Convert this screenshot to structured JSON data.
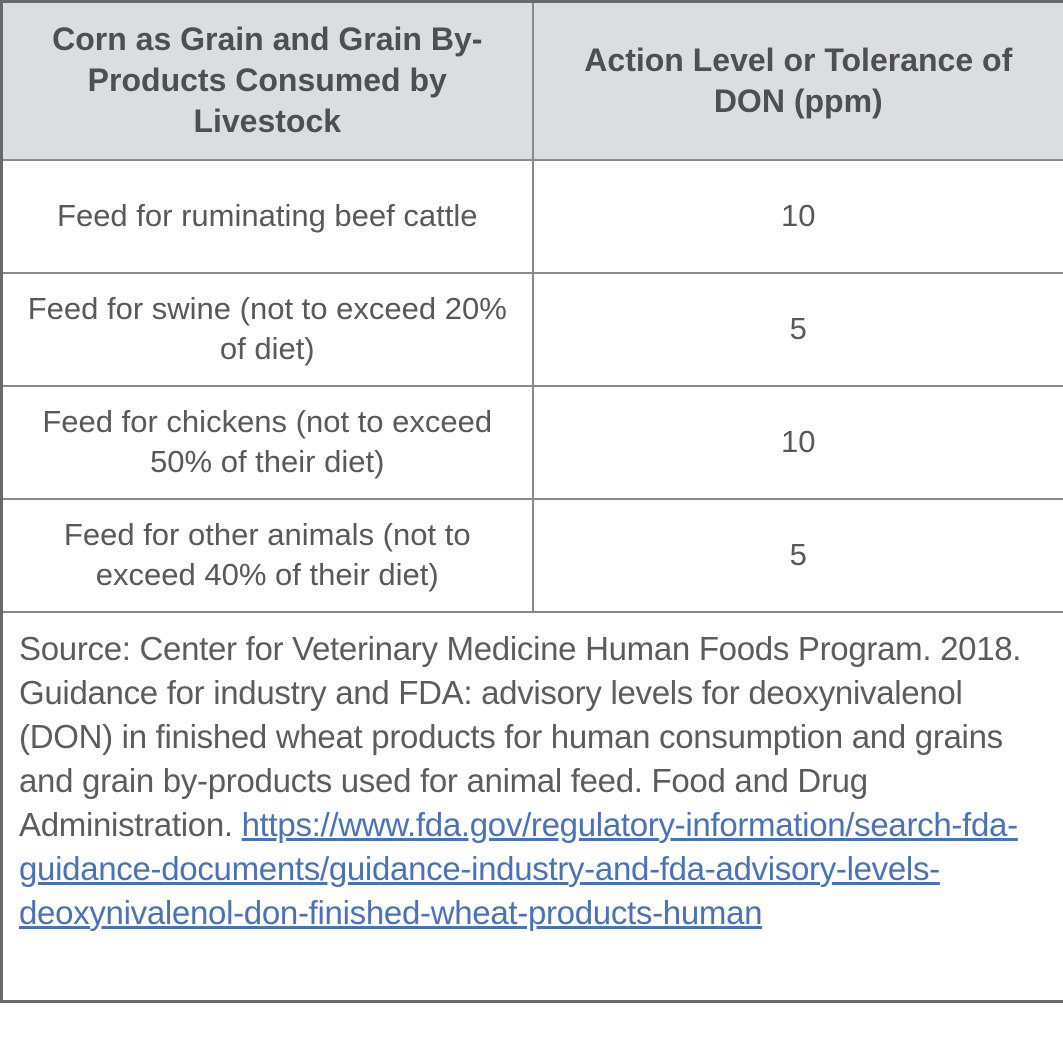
{
  "table": {
    "columns": [
      {
        "header": "Corn as Grain and Grain By-Products Consumed by Livestock"
      },
      {
        "header": "Action Level or Tolerance of DON (ppm)"
      }
    ],
    "rows": [
      {
        "feed": "Feed for ruminating beef cattle",
        "level": "10"
      },
      {
        "feed": "Feed for swine (not to exceed 20% of diet)",
        "level": "5"
      },
      {
        "feed": "Feed for chickens (not to exceed 50% of their diet)",
        "level": "10"
      },
      {
        "feed": "Feed for other animals (not to exceed 40% of their diet)",
        "level": "5"
      }
    ],
    "source": {
      "text": "Source: Center for Veterinary Medicine Human Foods Program. 2018. Guidance for industry and FDA: advisory levels for deoxynivalenol (DON) in finished wheat products for human consumption and grains and grain by-products used for animal feed. Food and Drug Administration. ",
      "link": "https://www.fda.gov/regulatory-information/search-fda-guidance-documents/guidance-industry-and-fda-advisory-levels-deoxynivalenol-don-finished-wheat-products-human"
    }
  },
  "colors": {
    "header_bg": "#dcdddf",
    "inner_border": "#8a8a8a",
    "outer_border": "#696969",
    "body_text": "#595959",
    "link": "#4a72b8"
  }
}
